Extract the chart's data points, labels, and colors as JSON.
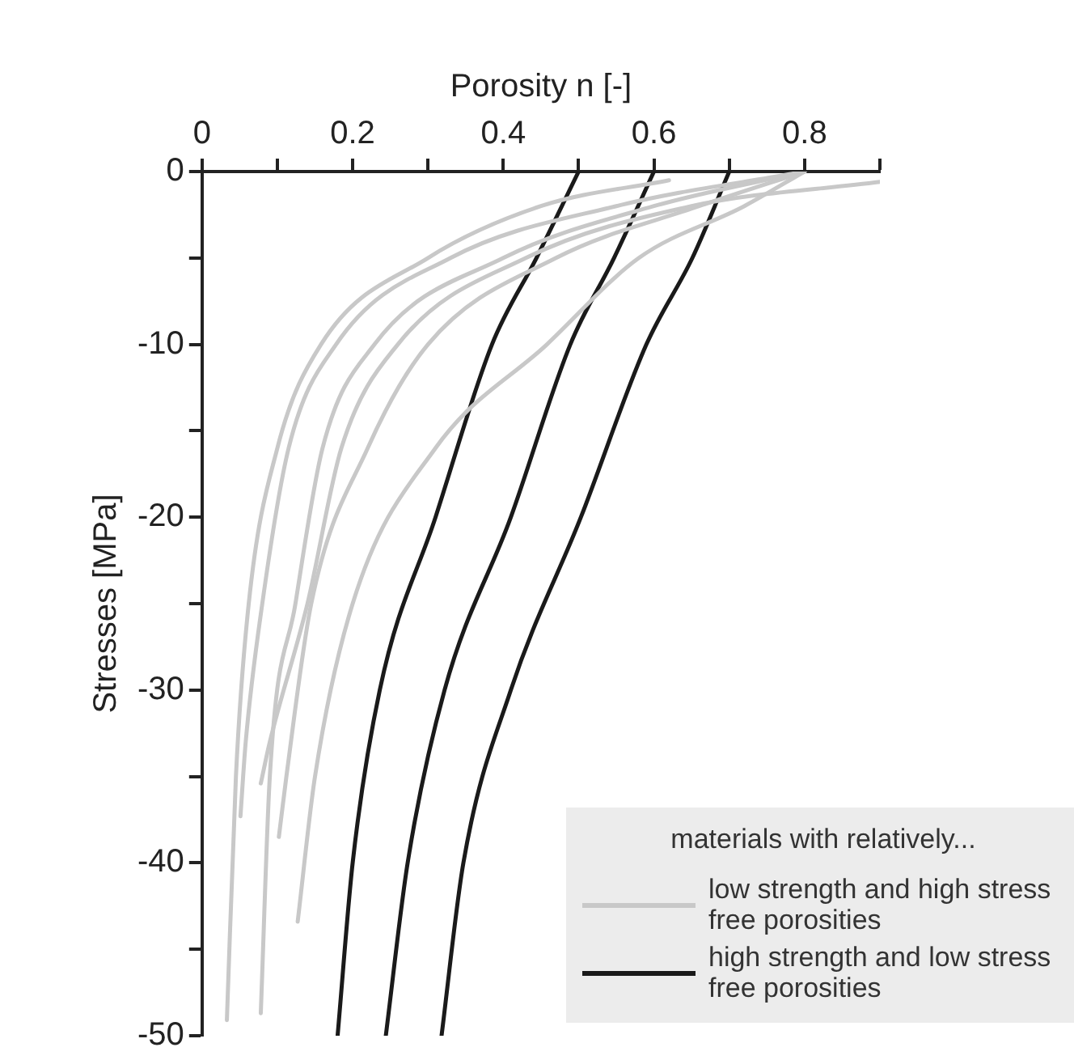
{
  "chart_data": {
    "type": "line",
    "xlabel": "Porosity n [-]",
    "ylabel": "Stresses [MPa]",
    "legend_title": "materials with relatively...",
    "legend": "bottom right",
    "marker": "none",
    "line_style": "solid",
    "grid": false,
    "xlim": [
      0,
      0.9
    ],
    "xticks": [
      0,
      {
        "value": 0.1,
        "label": null
      },
      0.2,
      {
        "value": 0.3,
        "label": null
      },
      0.4,
      {
        "value": 0.5,
        "label": null
      },
      0.6,
      {
        "value": 0.7,
        "label": null
      },
      0.8,
      {
        "value": 0.9,
        "label": null
      }
    ],
    "ylim": [
      -50,
      0
    ],
    "yticks": [
      -50,
      {
        "value": -45,
        "label": null
      },
      -40,
      {
        "value": -35,
        "label": null
      },
      -30,
      {
        "value": -25,
        "label": null
      },
      -20,
      {
        "value": -15,
        "label": null
      },
      -10,
      {
        "value": -5,
        "label": null
      },
      0
    ],
    "series": [
      {
        "name": "low strength and high stress free porosities",
        "color": "#c8c8c8",
        "x": [
          0.62,
          0.45,
          0.3,
          0.158,
          0.1,
          0.062,
          0.045,
          0.033
        ],
        "values": [
          -0.5,
          -2,
          -5,
          -10,
          -16,
          -25,
          -35,
          -49.1
        ]
      },
      {
        "color": "#c8c8c8",
        "x": [
          0.8,
          0.55,
          0.33,
          0.178,
          0.115,
          0.08,
          0.058,
          0.051
        ],
        "values": [
          0,
          -2,
          -5,
          -10,
          -16,
          -25,
          -33,
          -37.3
        ]
      },
      {
        "color": "#c8c8c8",
        "x": [
          0.8,
          0.6,
          0.4,
          0.229,
          0.16,
          0.124,
          0.09,
          0.078
        ],
        "values": [
          0,
          -2,
          -5,
          -10,
          -16,
          -25,
          -35,
          -48.7
        ]
      },
      {
        "color": "#c8c8c8",
        "x": [
          0.9,
          0.65,
          0.43,
          0.26,
          0.185,
          0.14,
          0.09,
          0.078
        ],
        "values": [
          -0.6,
          -2,
          -5,
          -10,
          -16,
          -25,
          -33,
          -35.4
        ]
      },
      {
        "color": "#c8c8c8",
        "x": [
          0.8,
          0.66,
          0.47,
          0.3,
          0.22,
          0.145,
          0.112,
          0.102
        ],
        "values": [
          0,
          -2,
          -5,
          -10,
          -16,
          -25,
          -35,
          -38.5
        ]
      },
      {
        "color": "#c8c8c8",
        "x": [
          0.8,
          0.72,
          0.58,
          0.458,
          0.31,
          0.2,
          0.15,
          0.127
        ],
        "values": [
          0,
          -2,
          -5,
          -10,
          -16,
          -25,
          -35,
          -43.4
        ]
      },
      {
        "name": "high strength and low stress free porosities",
        "color": "#1a1a1a",
        "x": [
          0.5,
          0.444,
          0.385,
          0.31,
          0.236,
          0.2,
          0.18
        ],
        "values": [
          0,
          -5,
          -10,
          -20,
          -30,
          -40,
          -50
        ]
      },
      {
        "color": "#1a1a1a",
        "x": [
          0.6,
          0.547,
          0.489,
          0.41,
          0.322,
          0.273,
          0.244
        ],
        "values": [
          0,
          -5,
          -10,
          -20,
          -30,
          -40,
          -50
        ]
      },
      {
        "color": "#1a1a1a",
        "x": [
          0.7,
          0.651,
          0.59,
          0.503,
          0.41,
          0.347,
          0.318
        ],
        "values": [
          0,
          -5,
          -10,
          -20,
          -30,
          -40,
          -50
        ]
      }
    ]
  }
}
